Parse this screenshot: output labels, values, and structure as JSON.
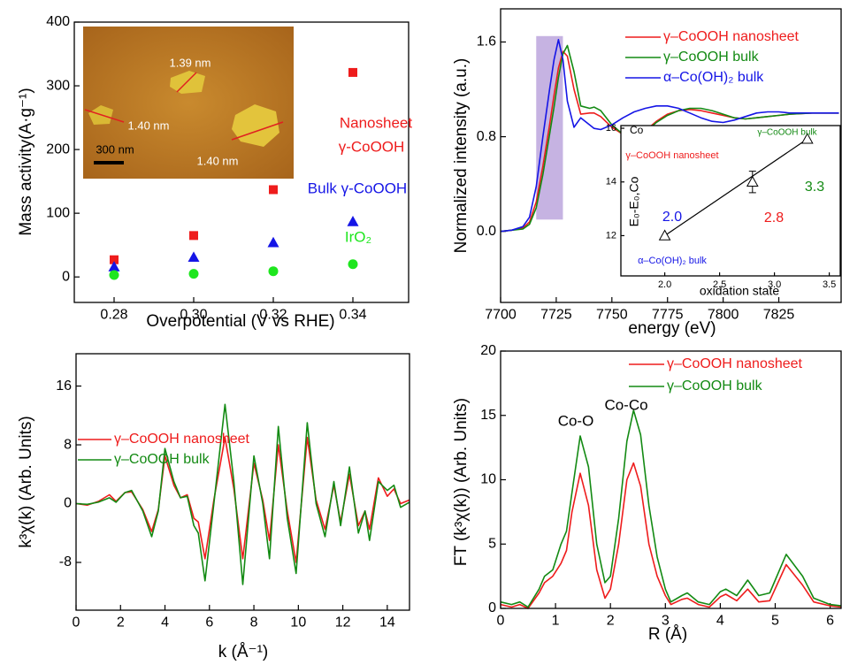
{
  "chart_data": [
    {
      "type": "scatter",
      "x_label": "Overpotential (V vs RHE)",
      "y_label": "Mass activity(A·g⁻¹)",
      "x": [
        0.28,
        0.3,
        0.32,
        0.34
      ],
      "series": [
        {
          "color": "#ee1c1c",
          "marker": "square",
          "values": [
            27,
            65,
            137,
            321
          ]
        },
        {
          "color": "#1515e6",
          "marker": "triangle",
          "values": [
            16,
            31,
            54,
            87
          ]
        },
        {
          "color": "#1ee61e",
          "marker": "circle",
          "values": [
            3,
            5,
            9,
            20
          ]
        }
      ],
      "xlim": [
        0.27,
        0.354
      ],
      "ylim": [
        -40,
        400
      ],
      "xticks": [
        0.28,
        {
          "value": 0.3,
          "label": "0.30"
        },
        0.32,
        0.34
      ],
      "yticks": [
        0,
        100,
        200,
        300,
        400
      ],
      "annotations": [
        {
          "text": "Nanosheet",
          "color": "#ee1c1c"
        },
        {
          "text": "γ-CoOOH",
          "color": "#ee1c1c"
        },
        {
          "text": "Bulk γ-CoOOH",
          "color": "#1515e6"
        },
        {
          "text": "IrO₂",
          "color": "#1ee61e"
        }
      ],
      "image_labels": [
        "1.39 nm",
        "1.40 nm",
        "1.40 nm",
        "300 nm"
      ]
    },
    {
      "type": "line",
      "x_label": "energy (eV)",
      "y_label": "Normalized intensity (a.u.)",
      "x": [
        7700,
        7705,
        7710,
        7713,
        7716,
        7719,
        7722,
        7724,
        7726,
        7728,
        7730,
        7733,
        7736,
        7740,
        7742,
        7745,
        7750,
        7755,
        7760,
        7765,
        7770,
        7775,
        7780,
        7785,
        7790,
        7795,
        7800,
        7805,
        7810,
        7815,
        7820,
        7825,
        7830,
        7840,
        7852
      ],
      "series": [
        {
          "name": "γ–CoOOH nanosheet",
          "color": "#ee1c1c",
          "values": [
            0,
            0.01,
            0.03,
            0.08,
            0.25,
            0.55,
            0.9,
            1.15,
            1.38,
            1.52,
            1.48,
            1.2,
            0.99,
            1.0,
            1.0,
            0.97,
            0.88,
            0.82,
            0.81,
            0.85,
            0.93,
            0.99,
            1.02,
            1.03,
            1.02,
            1.0,
            0.98,
            0.96,
            0.95,
            0.96,
            0.97,
            0.98,
            0.99,
            1.0,
            1.0
          ]
        },
        {
          "name": "γ–CoOOH bulk",
          "color": "#138a13",
          "values": [
            0,
            0.01,
            0.02,
            0.06,
            0.2,
            0.48,
            0.82,
            1.05,
            1.3,
            1.5,
            1.57,
            1.35,
            1.06,
            1.04,
            1.05,
            1.02,
            0.9,
            0.82,
            0.8,
            0.84,
            0.92,
            0.98,
            1.02,
            1.04,
            1.04,
            1.02,
            0.99,
            0.96,
            0.95,
            0.96,
            0.97,
            0.98,
            0.99,
            1.0,
            1.0
          ]
        },
        {
          "name": "α–Co(OH)₂ bulk",
          "color": "#1515e6",
          "values": [
            0,
            0.01,
            0.04,
            0.12,
            0.38,
            0.8,
            1.2,
            1.45,
            1.62,
            1.45,
            1.1,
            0.88,
            0.96,
            0.9,
            0.87,
            0.86,
            0.9,
            0.96,
            1.01,
            1.04,
            1.06,
            1.06,
            1.04,
            1.0,
            0.96,
            0.93,
            0.92,
            0.94,
            0.97,
            1.0,
            1.01,
            1.01,
            1.0,
            1.0,
            1.0
          ]
        }
      ],
      "xlim": [
        7700,
        7853
      ],
      "ylim": [
        -0.6,
        1.88
      ],
      "xticks": [
        7700,
        7725,
        7750,
        7775,
        7800,
        7825
      ],
      "yticks": [
        {
          "value": 0,
          "label": "0.0"
        },
        0.8,
        1.6
      ],
      "legend": "upper right",
      "highlight": {
        "x": [
          7716,
          7728
        ],
        "y": [
          0.1,
          1.65
        ],
        "color": "#c6b3e2"
      }
    },
    {
      "type": "line",
      "x_label": "k (Å⁻¹)",
      "y_label": "k³χ(k) (Arb. Units)",
      "x": [
        0,
        0.5,
        1,
        1.5,
        1.8,
        2.2,
        2.5,
        3,
        3.4,
        3.7,
        4,
        4.4,
        4.7,
        5,
        5.3,
        5.5,
        5.8,
        6.2,
        6.7,
        7.1,
        7.5,
        8,
        8.4,
        8.7,
        9.1,
        9.5,
        9.9,
        10.4,
        10.8,
        11.2,
        11.6,
        11.9,
        12.3,
        12.7,
        13,
        13.2,
        13.6,
        14,
        14.3,
        14.6,
        15
      ],
      "series": [
        {
          "name": "γ–CoOOH nanosheet",
          "color": "#ee1c1c",
          "values": [
            0,
            -0.2,
            0.3,
            1.2,
            0.3,
            1.5,
            1.6,
            -0.8,
            -3.8,
            -0.8,
            6.5,
            2.5,
            0.8,
            1.2,
            -2,
            -2.5,
            -7.5,
            0.5,
            9,
            2,
            -7.5,
            5.5,
            0.5,
            -5,
            8,
            -1,
            -8,
            9,
            0.5,
            -3.5,
            2.5,
            -2.5,
            4,
            -3,
            -1,
            -3.5,
            3.5,
            1,
            2,
            0,
            0.5
          ]
        },
        {
          "name": "γ–CoOOH bulk",
          "color": "#138a13",
          "values": [
            0,
            -0.1,
            0.2,
            0.8,
            0.2,
            1.5,
            1.8,
            -1,
            -4.5,
            -1,
            7.5,
            3,
            0.8,
            1,
            -3,
            -4,
            -10.5,
            0,
            13.5,
            3,
            -11,
            6.5,
            0,
            -7.5,
            10.5,
            -2,
            -9.5,
            11,
            0,
            -4.5,
            3,
            -3,
            5,
            -4,
            -1,
            -5,
            3,
            1.8,
            2.5,
            -0.5,
            0.2
          ]
        }
      ],
      "xlim": [
        0,
        15
      ],
      "ylim": [
        -14.5,
        20.4
      ],
      "xticks": [
        0,
        2,
        4,
        6,
        8,
        10,
        12,
        14
      ],
      "yticks": [
        -8,
        0,
        8,
        16
      ],
      "legend": "upper left"
    },
    {
      "type": "line",
      "x_label": "R (Å)",
      "y_label": "FT (k³χ(k)) (Arb. Units)",
      "x": [
        0,
        0.2,
        0.35,
        0.5,
        0.7,
        0.8,
        0.95,
        1.1,
        1.2,
        1.3,
        1.45,
        1.6,
        1.75,
        1.9,
        2.0,
        2.15,
        2.3,
        2.42,
        2.55,
        2.7,
        2.85,
        3.0,
        3.1,
        3.3,
        3.4,
        3.6,
        3.8,
        4.0,
        4.1,
        4.3,
        4.5,
        4.7,
        4.9,
        5.2,
        5.5,
        5.7,
        6.0,
        6.2
      ],
      "series": [
        {
          "name": "γ–CoOOH nanosheet",
          "color": "#ee1c1c",
          "values": [
            0.3,
            0.1,
            0.3,
            0,
            1.2,
            2,
            2.5,
            3.5,
            4.5,
            7.5,
            10.5,
            8,
            3,
            0.8,
            1.5,
            5,
            10,
            11.3,
            9.5,
            5,
            2.5,
            1,
            0.3,
            0.7,
            0.8,
            0.3,
            0.1,
            0.9,
            1.1,
            0.6,
            1.5,
            0.5,
            0.6,
            3.4,
            1.8,
            0.5,
            0.2,
            0.1
          ]
        },
        {
          "name": "γ–CoOOH bulk",
          "color": "#138a13",
          "values": [
            0.5,
            0.3,
            0.5,
            0.1,
            1.5,
            2.5,
            3,
            5,
            6,
            9,
            13.4,
            11,
            5,
            2,
            2.5,
            7,
            13,
            15.4,
            13.5,
            8,
            4,
            1.5,
            0.5,
            1,
            1.2,
            0.5,
            0.3,
            1.3,
            1.5,
            1,
            2.2,
            1,
            1.2,
            4.2,
            2.5,
            0.8,
            0.3,
            0.2
          ]
        }
      ],
      "xlim": [
        0,
        6.2
      ],
      "ylim": [
        0,
        20
      ],
      "xticks": [
        0,
        1,
        2,
        3,
        4,
        5,
        6
      ],
      "yticks": [
        0,
        5,
        10,
        15,
        20
      ],
      "legend": "upper right",
      "annotations": [
        {
          "text": "Co-O",
          "color": "#000000"
        },
        {
          "text": "Co-Co",
          "color": "#000000"
        }
      ]
    },
    {
      "type": "scatter",
      "x_label": "oxidation state",
      "y_label": "E₀-E₀,Co",
      "x": [
        2.0,
        2.8,
        3.3
      ],
      "series": [
        {
          "color": "#000000",
          "marker": "open-triangle",
          "values": [
            12,
            14,
            15.6
          ],
          "errors": [
            null,
            0.4,
            null
          ]
        }
      ],
      "point_labels": [
        "2.0",
        "2.8",
        "3.3"
      ],
      "point_label_colors": [
        "#1515e6",
        "#ee1c1c",
        "#138a13"
      ],
      "xlim": [
        1.6,
        3.6
      ],
      "ylim": [
        10.5,
        16.1
      ],
      "xticks": [
        {
          "value": 2,
          "label": "2.0"
        },
        2.5,
        {
          "value": 3,
          "label": "3.0"
        },
        3.5
      ],
      "yticks": [
        12,
        14,
        16
      ],
      "annotations": [
        {
          "text": "Co",
          "color": "#000000"
        },
        {
          "text": "γ–CoOOH bulk",
          "color": "#138a13"
        },
        {
          "text": "γ–CoOOH nanosheet",
          "color": "#ee1c1c"
        },
        {
          "text": "α–Co(OH)₂ bulk",
          "color": "#1515e6"
        }
      ]
    }
  ]
}
